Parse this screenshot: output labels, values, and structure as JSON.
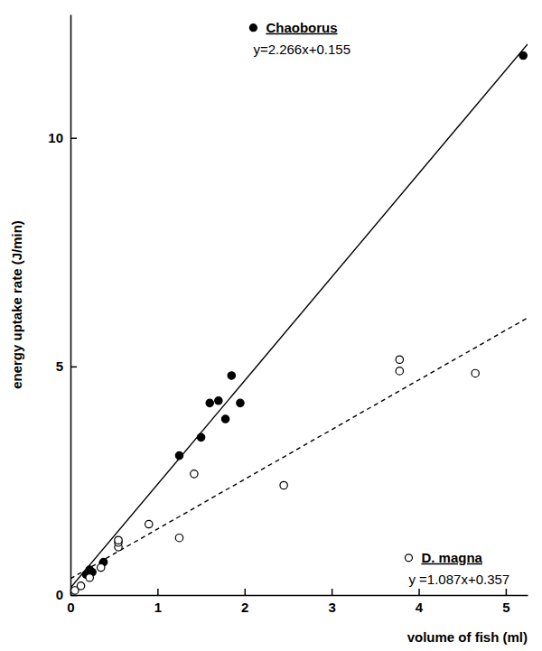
{
  "chart_data": {
    "type": "scatter",
    "x_label": "volume of fish (ml)",
    "y_label": "energy uptake rate (J/min)",
    "xlim": [
      0,
      5.25
    ],
    "ylim": [
      0,
      12.7
    ],
    "xticks": [
      0,
      1,
      2,
      3,
      4,
      5
    ],
    "yticks": [
      0,
      5,
      10
    ],
    "grid": false,
    "series": [
      {
        "name": "Chaoborus",
        "color": "#000000",
        "marker": "filled",
        "line_style": "solid",
        "equation": "y=2.266x+0.155",
        "fit": {
          "slope": 2.266,
          "intercept": 0.155
        },
        "x": [
          0.18,
          0.22,
          0.25,
          0.38,
          1.25,
          1.5,
          1.6,
          1.7,
          1.78,
          1.85,
          1.95,
          5.2
        ],
        "values": [
          0.45,
          0.55,
          0.5,
          0.72,
          3.05,
          3.45,
          4.2,
          4.25,
          3.85,
          4.8,
          4.2,
          11.8
        ]
      },
      {
        "name": "D. magna",
        "color": "#000000",
        "marker": "open",
        "line_style": "dashed",
        "equation": "y =1.087x+0.357",
        "fit": {
          "slope": 1.087,
          "intercept": 0.357
        },
        "x": [
          0.05,
          0.12,
          0.22,
          0.35,
          0.55,
          0.55,
          0.55,
          0.9,
          1.25,
          1.42,
          2.45,
          3.78,
          3.78,
          4.65
        ],
        "values": [
          0.1,
          0.2,
          0.38,
          0.6,
          1.05,
          1.15,
          1.2,
          1.55,
          1.25,
          2.65,
          2.4,
          5.15,
          4.9,
          4.85
        ]
      }
    ]
  }
}
